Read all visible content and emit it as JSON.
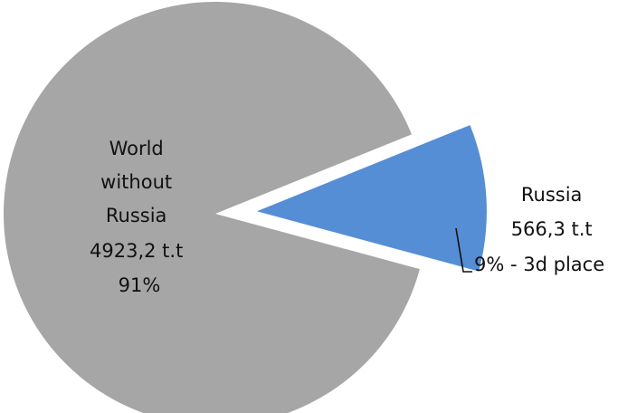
{
  "chart_data": {
    "type": "pie",
    "title": "",
    "exploded": "Russia",
    "slices": [
      {
        "name": "World without Russia",
        "value": 4923.2,
        "percent": 91,
        "color": "#a6a6a6",
        "label_lines": [
          "World",
          "without",
          "Russia",
          "4923,2 t.t",
          "91%"
        ]
      },
      {
        "name": "Russia",
        "value": 566.3,
        "percent": 9,
        "color": "#558ed5",
        "label_lines": [
          "Russia",
          "566,3 t.t",
          "9% - 3d place"
        ]
      }
    ]
  }
}
